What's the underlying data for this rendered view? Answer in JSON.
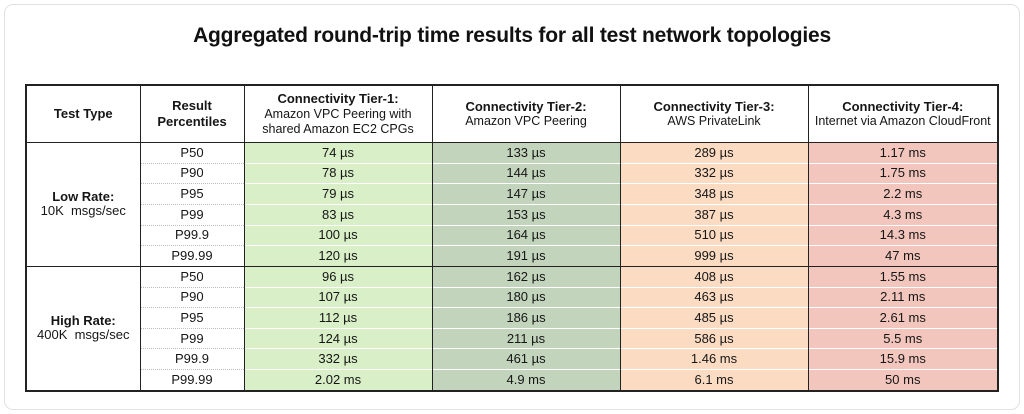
{
  "title": "Aggregated round-trip time results for all test network topologies",
  "colors": {
    "tier1": "#d9efc7",
    "tier2": "#c3d4bd",
    "tier3": "#fbdcc3",
    "tier4": "#f2c6bc",
    "grid": "#222222",
    "frame_border": "#e2e2e2"
  },
  "table": {
    "headers": [
      {
        "label": "Test Type",
        "sub": ""
      },
      {
        "label": "Result Percentiles",
        "sub": ""
      },
      {
        "label": "Connectivity Tier-1:",
        "sub": "Amazon VPC Peering with shared Amazon EC2 CPGs"
      },
      {
        "label": "Connectivity Tier-2:",
        "sub": "Amazon VPC Peering"
      },
      {
        "label": "Connectivity Tier-3:",
        "sub": "AWS PrivateLink"
      },
      {
        "label": "Connectivity Tier-4:",
        "sub": "Internet via Amazon CloudFront"
      }
    ],
    "sections": [
      {
        "test_type_label": "Low Rate:",
        "test_type_sub": "10K  msgs/sec",
        "rows": [
          {
            "percentile": "P50",
            "tier1": "74 µs",
            "tier2": "133 µs",
            "tier3": "289 µs",
            "tier4": "1.17 ms"
          },
          {
            "percentile": "P90",
            "tier1": "78 µs",
            "tier2": "144 µs",
            "tier3": "332 µs",
            "tier4": "1.75 ms"
          },
          {
            "percentile": "P95",
            "tier1": "79 µs",
            "tier2": "147 µs",
            "tier3": "348 µs",
            "tier4": "2.2 ms"
          },
          {
            "percentile": "P99",
            "tier1": "83 µs",
            "tier2": "153 µs",
            "tier3": "387 µs",
            "tier4": "4.3 ms"
          },
          {
            "percentile": "P99.9",
            "tier1": "100 µs",
            "tier2": "164 µs",
            "tier3": "510 µs",
            "tier4": "14.3 ms"
          },
          {
            "percentile": "P99.99",
            "tier1": "120 µs",
            "tier2": "191 µs",
            "tier3": "999 µs",
            "tier4": "47 ms"
          }
        ]
      },
      {
        "test_type_label": "High Rate:",
        "test_type_sub": "400K  msgs/sec",
        "rows": [
          {
            "percentile": "P50",
            "tier1": "96 µs",
            "tier2": "162 µs",
            "tier3": "408 µs",
            "tier4": "1.55 ms"
          },
          {
            "percentile": "P90",
            "tier1": "107 µs",
            "tier2": "180 µs",
            "tier3": "463 µs",
            "tier4": "2.11 ms"
          },
          {
            "percentile": "P95",
            "tier1": "112 µs",
            "tier2": "186 µs",
            "tier3": "485 µs",
            "tier4": "2.61 ms"
          },
          {
            "percentile": "P99",
            "tier1": "124 µs",
            "tier2": "211 µs",
            "tier3": "586 µs",
            "tier4": "5.5 ms"
          },
          {
            "percentile": "P99.9",
            "tier1": "332 µs",
            "tier2": "461 µs",
            "tier3": "1.46 ms",
            "tier4": "15.9 ms"
          },
          {
            "percentile": "P99.99",
            "tier1": "2.02 ms",
            "tier2": "4.9 ms",
            "tier3": "6.1 ms",
            "tier4": "50 ms"
          }
        ]
      }
    ]
  },
  "chart_data": {
    "type": "table",
    "title": "Aggregated round-trip time results for all test network topologies",
    "columns": [
      "Test Type",
      "Result Percentiles",
      "Connectivity Tier-1: Amazon VPC Peering with shared Amazon EC2 CPGs",
      "Connectivity Tier-2: Amazon VPC Peering",
      "Connectivity Tier-3: AWS PrivateLink",
      "Connectivity Tier-4: Internet via Amazon CloudFront"
    ],
    "rows": [
      [
        "Low Rate: 10K msgs/sec",
        "P50",
        "74 µs",
        "133 µs",
        "289 µs",
        "1.17 ms"
      ],
      [
        "Low Rate: 10K msgs/sec",
        "P90",
        "78 µs",
        "144 µs",
        "332 µs",
        "1.75 ms"
      ],
      [
        "Low Rate: 10K msgs/sec",
        "P95",
        "79 µs",
        "147 µs",
        "348 µs",
        "2.2 ms"
      ],
      [
        "Low Rate: 10K msgs/sec",
        "P99",
        "83 µs",
        "153 µs",
        "387 µs",
        "4.3 ms"
      ],
      [
        "Low Rate: 10K msgs/sec",
        "P99.9",
        "100 µs",
        "164 µs",
        "510 µs",
        "14.3 ms"
      ],
      [
        "Low Rate: 10K msgs/sec",
        "P99.99",
        "120 µs",
        "191 µs",
        "999 µs",
        "47 ms"
      ],
      [
        "High Rate: 400K msgs/sec",
        "P50",
        "96 µs",
        "162 µs",
        "408 µs",
        "1.55 ms"
      ],
      [
        "High Rate: 400K msgs/sec",
        "P90",
        "107 µs",
        "180 µs",
        "463 µs",
        "2.11 ms"
      ],
      [
        "High Rate: 400K msgs/sec",
        "P95",
        "112 µs",
        "186 µs",
        "485 µs",
        "2.61 ms"
      ],
      [
        "High Rate: 400K msgs/sec",
        "P99",
        "124 µs",
        "211 µs",
        "586 µs",
        "5.5 ms"
      ],
      [
        "High Rate: 400K msgs/sec",
        "P99.9",
        "332 µs",
        "461 µs",
        "1.46 ms",
        "15.9 ms"
      ],
      [
        "High Rate: 400K msgs/sec",
        "P99.99",
        "2.02 ms",
        "4.9 ms",
        "6.1 ms",
        "50 ms"
      ]
    ],
    "column_fill_colors": [
      "#ffffff",
      "#ffffff",
      "#d9efc7",
      "#c3d4bd",
      "#fbdcc3",
      "#f2c6bc"
    ],
    "layout": "header row bold; Test Type cells merged per 6-row section; grid on"
  }
}
